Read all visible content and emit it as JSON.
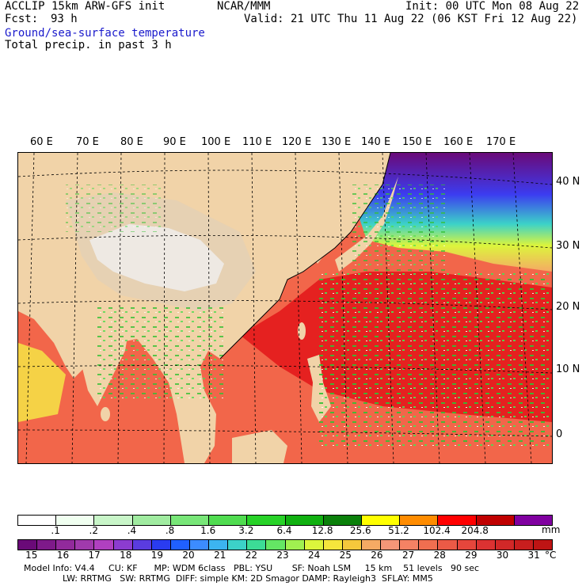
{
  "header": {
    "model_line": "ACCLIP 15km ARW-GFS init",
    "org": "NCAR/MMM",
    "init": "Init: 00 UTC Mon 08 Aug 22",
    "fcst_label": "Fcst:",
    "fcst_value": "93 h",
    "valid": "Valid: 21 UTC Thu 11 Aug 22 (06 KST Fri 12 Aug 22)",
    "field1": "Ground/sea-surface temperature",
    "field2": "Total precip. in past 3 h"
  },
  "map": {
    "lon_labels": [
      "60 E",
      "70 E",
      "80 E",
      "90 E",
      "100 E",
      "110 E",
      "120 E",
      "130 E",
      "140 E",
      "150 E",
      "160 E",
      "170 E"
    ],
    "lat_labels": [
      "40 N",
      "30 N",
      "20 N",
      "10 N",
      "0"
    ],
    "colors": {
      "land": "#f1d3a8",
      "plateau": "#e8e4dd",
      "ocean_warm": "#f2664a",
      "ocean_hot": "#e31a1c",
      "precip": "#33c033"
    }
  },
  "precip_scale": {
    "unit": "mm",
    "ticks": [
      ".1",
      ".2",
      ".4",
      ".8",
      "1.6",
      "3.2",
      "6.4",
      "12.8",
      "25.6",
      "51.2",
      "102.4",
      "204.8"
    ],
    "colors": [
      "#ffffff",
      "#f0fff0",
      "#c8f5c8",
      "#a0eba0",
      "#78e678",
      "#50dc50",
      "#28d228",
      "#10b010",
      "#0a800a",
      "#ffff00",
      "#ff8c00",
      "#ff0000",
      "#c00000",
      "#8000a0"
    ]
  },
  "temp_scale": {
    "unit": "°C",
    "ticks": [
      "15",
      "16",
      "17",
      "18",
      "19",
      "20",
      "21",
      "22",
      "23",
      "24",
      "25",
      "26",
      "27",
      "28",
      "29",
      "30",
      "31"
    ],
    "colors": [
      "#6a0a78",
      "#7e1a8a",
      "#922a9c",
      "#a03aac",
      "#b040c0",
      "#8c3cd0",
      "#5a3ce0",
      "#2a3cf0",
      "#2060ff",
      "#3c8cff",
      "#3cb4f0",
      "#3cd2c8",
      "#3cdc96",
      "#64e664",
      "#a0f050",
      "#dcf53c",
      "#f5e63c",
      "#f5c83c",
      "#f5aa64",
      "#f59678",
      "#f58264",
      "#f06e50",
      "#eb5a46",
      "#e6463c",
      "#dc3232",
      "#d22828",
      "#c81e1e",
      "#be1414"
    ]
  },
  "footer": {
    "line1": "Model Info: V4.4     CU: KF      MP: WDM 6class   PBL: YSU       SF: Noah LSM     15 km    51 levels   90 sec",
    "line2": "              LW: RRTMG   SW: RRTMG  DIFF: simple KM: 2D Smagor DAMP: Rayleigh3  SFLAY: MM5"
  }
}
